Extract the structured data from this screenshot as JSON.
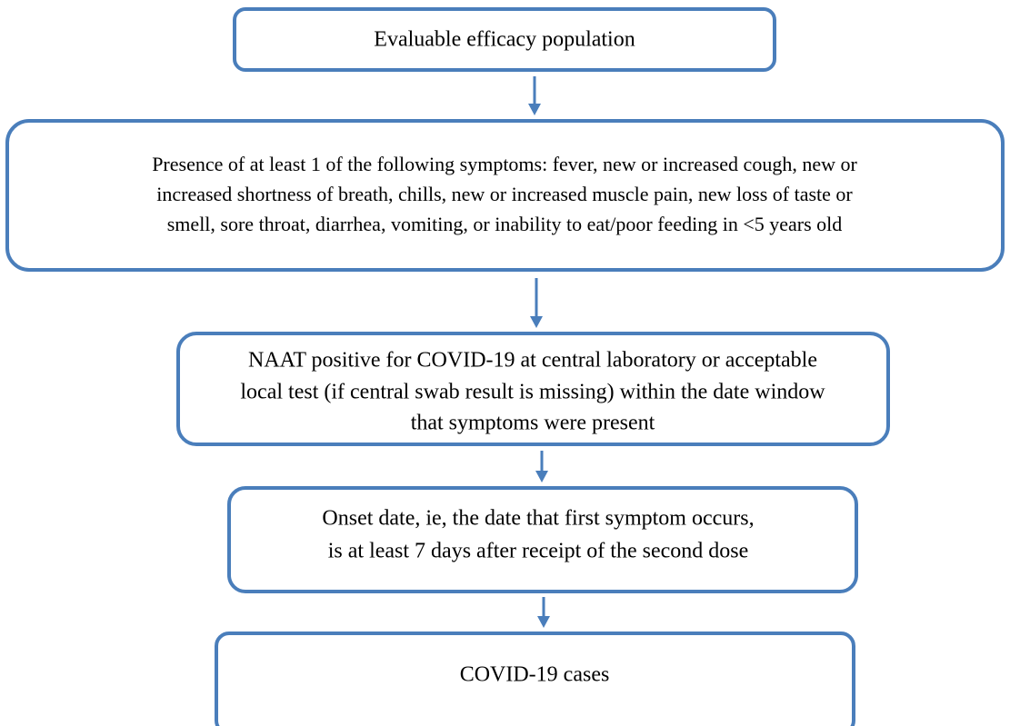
{
  "nodes": [
    {
      "lines": [
        "Evaluable efficacy population"
      ]
    },
    {
      "lines": [
        "Presence of at least 1 of the following symptoms: fever, new or increased cough, new or",
        "increased shortness of breath, chills, new or increased muscle pain, new loss of taste or",
        "smell, sore throat, diarrhea, vomiting, or inability to eat/poor feeding in <5 years old"
      ]
    },
    {
      "lines": [
        "NAAT positive for COVID-19 at central laboratory or acceptable",
        "local test (if central swab result is missing) within the date window",
        "that symptoms were present"
      ]
    },
    {
      "lines": [
        "Onset date, ie, the date that first symptom occurs,",
        "is at least 7 days after receipt of the second dose"
      ]
    },
    {
      "lines": [
        "COVID-19 cases"
      ]
    }
  ]
}
